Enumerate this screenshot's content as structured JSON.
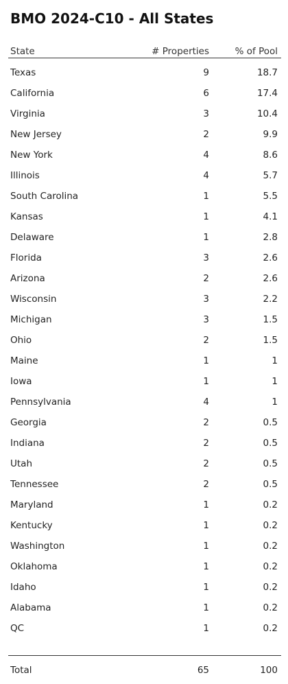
{
  "header": {
    "title": "BMO 2024-C10 - All States"
  },
  "table": {
    "columns": [
      "State",
      "# Properties",
      "% of Pool"
    ],
    "rows": [
      [
        "Texas",
        9,
        18.7
      ],
      [
        "California",
        6,
        17.4
      ],
      [
        "Virginia",
        3,
        10.4
      ],
      [
        "New Jersey",
        2,
        9.9
      ],
      [
        "New York",
        4,
        8.6
      ],
      [
        "Illinois",
        4,
        5.7
      ],
      [
        "South Carolina",
        1,
        5.5
      ],
      [
        "Kansas",
        1,
        4.1
      ],
      [
        "Delaware",
        1,
        2.8
      ],
      [
        "Florida",
        3,
        2.6
      ],
      [
        "Arizona",
        2,
        2.6
      ],
      [
        "Wisconsin",
        3,
        2.2
      ],
      [
        "Michigan",
        3,
        1.5
      ],
      [
        "Ohio",
        2,
        1.5
      ],
      [
        "Maine",
        1,
        1
      ],
      [
        "Iowa",
        1,
        1
      ],
      [
        "Pennsylvania",
        4,
        1
      ],
      [
        "Georgia",
        2,
        0.5
      ],
      [
        "Indiana",
        2,
        0.5
      ],
      [
        "Utah",
        2,
        0.5
      ],
      [
        "Tennessee",
        2,
        0.5
      ],
      [
        "Maryland",
        1,
        0.2
      ],
      [
        "Kentucky",
        1,
        0.2
      ],
      [
        "Washington",
        1,
        0.2
      ],
      [
        "Oklahoma",
        1,
        0.2
      ],
      [
        "Idaho",
        1,
        0.2
      ],
      [
        "Alabama",
        1,
        0.2
      ],
      [
        "QC",
        1,
        0.2
      ]
    ],
    "footer": [
      "Total",
      65,
      100
    ]
  }
}
